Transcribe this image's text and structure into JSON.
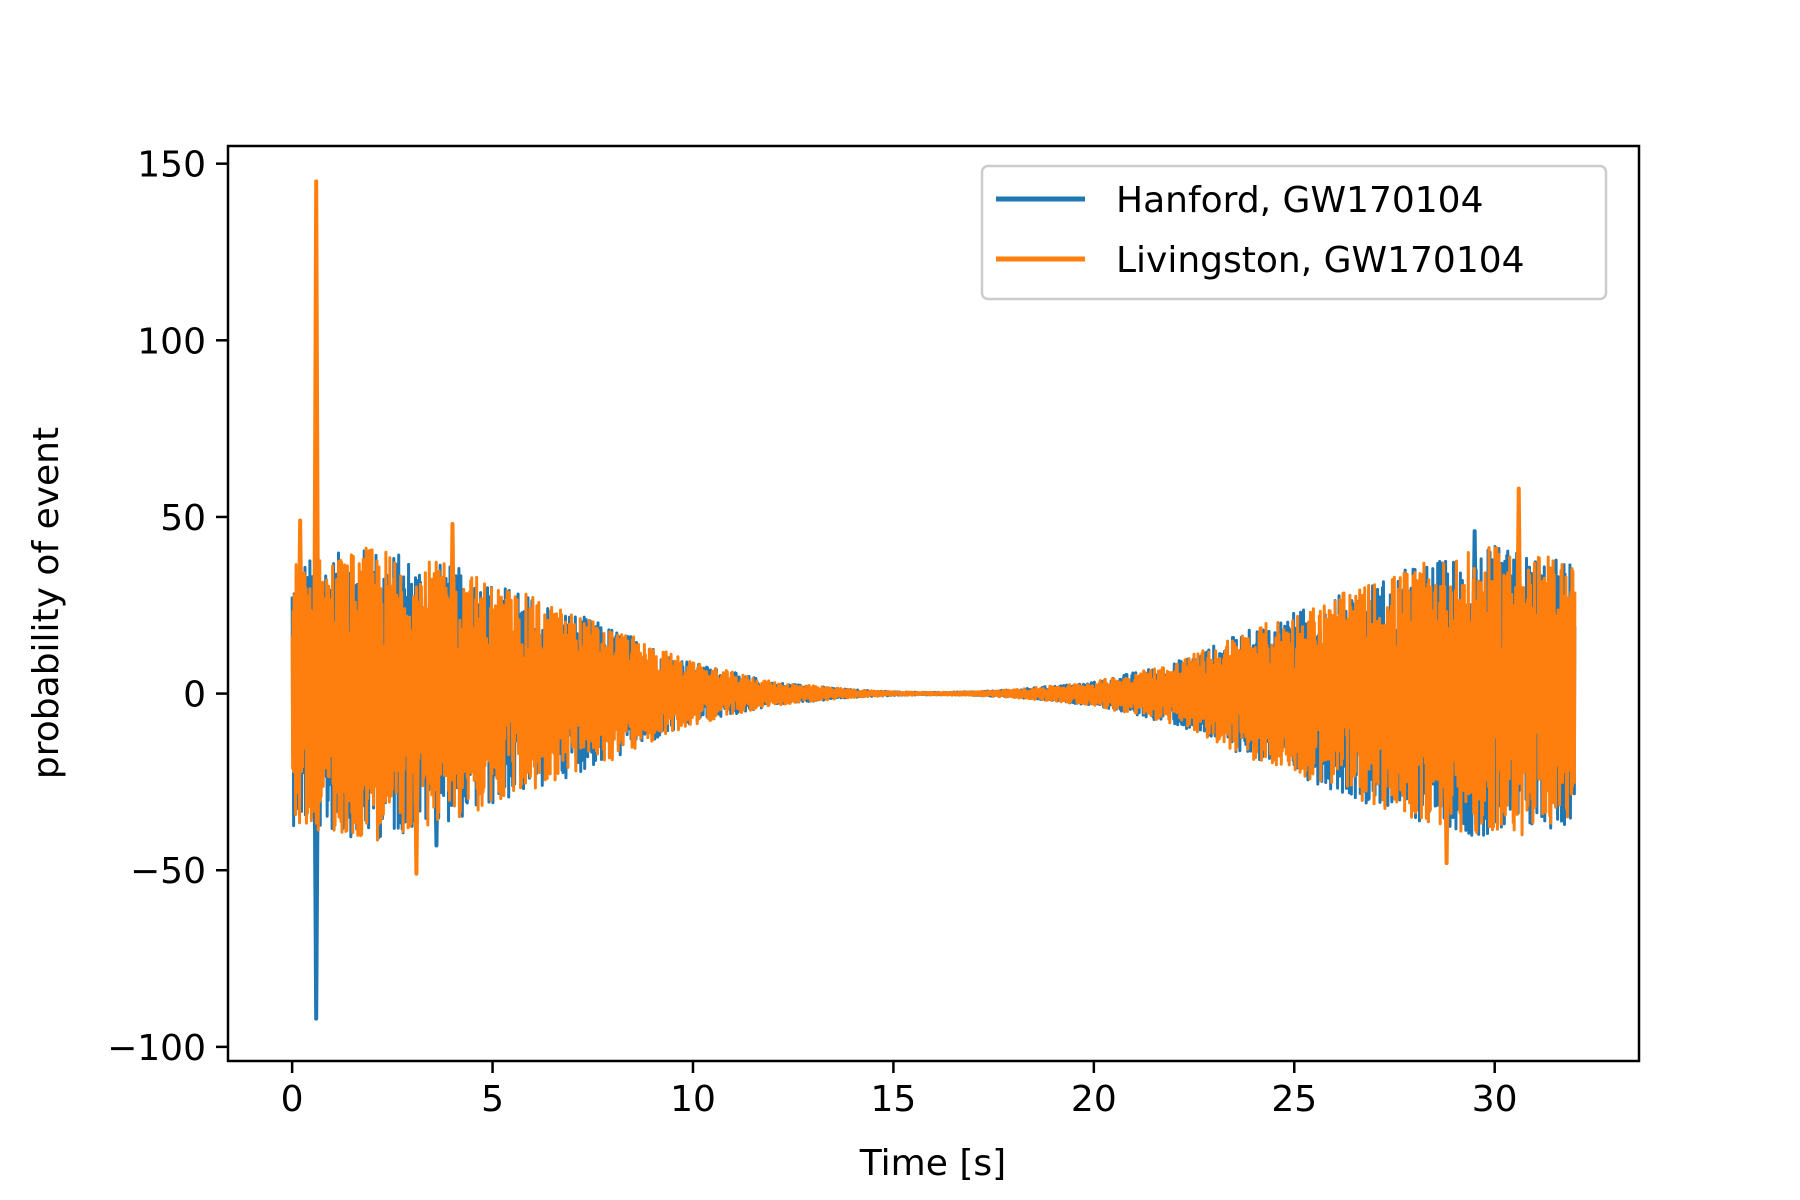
{
  "chart_data": {
    "type": "line",
    "title": "",
    "xlabel": "Time [s]",
    "ylabel": "probability of event",
    "xlim": [
      -1.6,
      33.6
    ],
    "ylim": [
      -104,
      155
    ],
    "xticks": [
      0,
      5,
      10,
      15,
      20,
      25,
      30
    ],
    "yticks": [
      -100,
      -50,
      0,
      50,
      100,
      150
    ],
    "xtick_labels": [
      "0",
      "5",
      "10",
      "15",
      "20",
      "25",
      "30"
    ],
    "ytick_labels": [
      "−100",
      "−50",
      "0",
      "50",
      "100",
      "150"
    ],
    "grid": false,
    "legend_position": "top-right",
    "series": [
      {
        "name": "Hanford, GW170104",
        "color": "#1f77b4",
        "x_range": [
          0,
          32
        ],
        "envelope": {
          "x": [
            0,
            2,
            4,
            6,
            8,
            10,
            12,
            14,
            15,
            16,
            17,
            18,
            20,
            22,
            24,
            26,
            28,
            30,
            32
          ],
          "amplitude": [
            34,
            38,
            33,
            25,
            17,
            8,
            3,
            1,
            0.5,
            0.3,
            0.5,
            1,
            3,
            8,
            17,
            25,
            33,
            38,
            34
          ]
        },
        "spikes": [
          {
            "x": 0.6,
            "y": -92
          },
          {
            "x": 3.6,
            "y": -43
          },
          {
            "x": 29.5,
            "y": 46
          }
        ]
      },
      {
        "name": "Livingston, GW170104",
        "color": "#ff7f0e",
        "x_range": [
          0,
          32
        ],
        "envelope": {
          "x": [
            0,
            2,
            4,
            6,
            8,
            10,
            12,
            14,
            15,
            16,
            17,
            18,
            20,
            22,
            24,
            26,
            28,
            30,
            32
          ],
          "amplitude": [
            34,
            38,
            33,
            25,
            17,
            8,
            3,
            1,
            0.5,
            0.3,
            0.5,
            1,
            3,
            8,
            17,
            25,
            33,
            38,
            34
          ]
        },
        "spikes": [
          {
            "x": 0.6,
            "y": 145
          },
          {
            "x": 0.2,
            "y": 49
          },
          {
            "x": 4.0,
            "y": 48
          },
          {
            "x": 3.1,
            "y": -51
          },
          {
            "x": 30.6,
            "y": 58
          },
          {
            "x": 28.8,
            "y": -48
          }
        ]
      }
    ]
  }
}
